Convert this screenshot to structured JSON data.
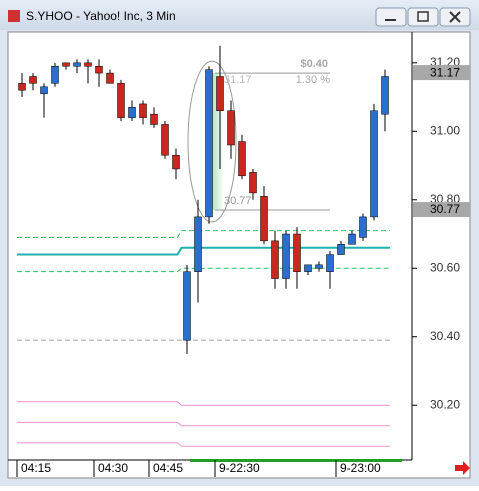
{
  "window_title": "S.YHOO - Yahoo! Inc, 3 Min",
  "chart_data": {
    "type": "candlestick",
    "categories": [
      "04:15",
      null,
      null,
      null,
      null,
      null,
      null,
      "04:30",
      null,
      null,
      null,
      null,
      "04:45",
      null,
      null,
      null,
      null,
      null,
      "9-22:30",
      null,
      null,
      null,
      null,
      null,
      null,
      null,
      null,
      null,
      null,
      "9-23:00",
      null,
      null,
      null,
      null
    ],
    "open": [
      31.14,
      31.16,
      31.11,
      31.14,
      31.2,
      31.19,
      31.2,
      31.19,
      31.17,
      31.14,
      31.04,
      31.08,
      31.05,
      31.02,
      30.93,
      30.39,
      30.59,
      30.75,
      31.16,
      31.06,
      30.97,
      30.88,
      30.81,
      30.68,
      30.57,
      30.7,
      30.59,
      30.6,
      30.59,
      30.64,
      30.67,
      30.69,
      30.75,
      31.05
    ],
    "high": [
      31.17,
      31.17,
      31.14,
      31.2,
      31.2,
      31.21,
      31.21,
      31.21,
      31.18,
      31.15,
      31.09,
      31.09,
      31.07,
      31.03,
      30.95,
      30.61,
      30.8,
      31.19,
      31.25,
      31.09,
      30.99,
      30.89,
      30.84,
      30.71,
      30.71,
      30.72,
      30.61,
      30.62,
      30.65,
      30.68,
      30.71,
      30.76,
      31.08,
      31.18
    ],
    "low": [
      31.1,
      31.12,
      31.04,
      31.13,
      31.18,
      31.17,
      31.14,
      31.13,
      31.14,
      31.03,
      31.03,
      31.02,
      31.01,
      30.92,
      30.86,
      30.35,
      30.5,
      30.73,
      30.89,
      30.92,
      30.86,
      30.8,
      30.67,
      30.54,
      30.54,
      30.54,
      30.58,
      30.59,
      30.54,
      30.64,
      30.67,
      30.68,
      30.74,
      31.0
    ],
    "close": [
      31.12,
      31.14,
      31.13,
      31.19,
      31.19,
      31.2,
      31.19,
      31.17,
      31.14,
      31.04,
      31.07,
      31.04,
      31.02,
      30.93,
      30.89,
      30.59,
      30.75,
      31.18,
      31.06,
      30.96,
      30.87,
      30.82,
      30.68,
      30.57,
      30.7,
      30.59,
      30.61,
      30.61,
      30.64,
      30.67,
      30.7,
      30.75,
      31.06,
      31.16
    ],
    "up_color": "#2a6fd0",
    "down_color": "#c8281e",
    "levels": [
      {
        "color": "#20b0b0",
        "style": "solid",
        "values": [
          30.64,
          30.66
        ]
      },
      {
        "color": "#33c060",
        "style": "dashed",
        "values": [
          30.69,
          30.71
        ]
      },
      {
        "color": "#33c060",
        "style": "dashed",
        "values": [
          30.59,
          30.6
        ]
      },
      {
        "color": "#a0a0a0",
        "style": "dashed",
        "values": [
          30.39,
          30.39
        ]
      },
      {
        "color": "#f090d0",
        "style": "solid",
        "values": [
          30.21,
          30.2
        ]
      },
      {
        "color": "#f090d0",
        "style": "solid",
        "values": [
          30.15,
          30.14
        ]
      },
      {
        "color": "#f090d0",
        "style": "solid",
        "values": [
          30.09,
          30.08
        ]
      }
    ],
    "measure": {
      "high": 31.17,
      "low": 30.77,
      "change": "$0.40",
      "percent": "1.30 %"
    },
    "price_markers": [
      31.17,
      30.77
    ],
    "ylim": [
      30.04,
      31.29
    ],
    "yticks": [
      {
        "value": 30.2,
        "label": "30.20"
      },
      {
        "value": 30.4,
        "label": "30.40"
      },
      {
        "value": 30.6,
        "label": "30.60"
      },
      {
        "value": 30.8,
        "label": "30.80"
      },
      {
        "value": 31.0,
        "label": "31.00"
      },
      {
        "value": 31.2,
        "label": "31.20"
      }
    ]
  }
}
